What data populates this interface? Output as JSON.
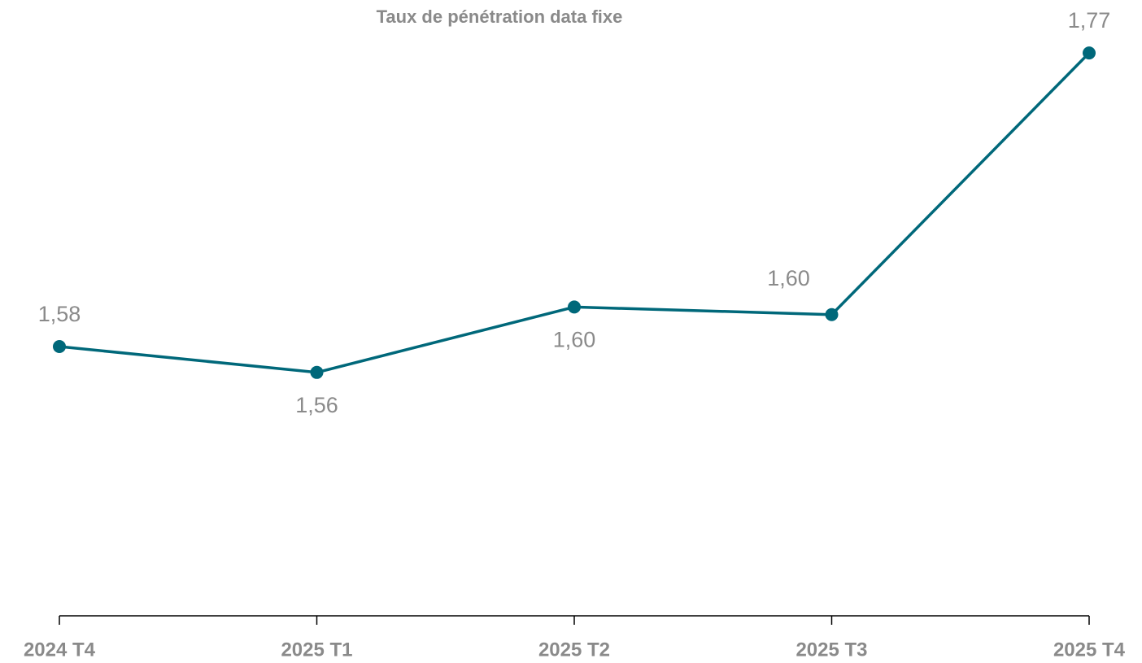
{
  "chart_data": {
    "type": "line",
    "title": "Taux de pénétration data fixe",
    "categories": [
      "2024 T4",
      "2025 T1",
      "2025 T2",
      "2025 T3",
      "2025 T4"
    ],
    "series": [
      {
        "color": "#00687a",
        "values": [
          1.577,
          1.56,
          1.603,
          1.598,
          1.77
        ],
        "value_labels": [
          "1,58",
          "1,56",
          "1,60",
          "1,60",
          "1,77"
        ]
      }
    ],
    "ylim": [
      1.4,
      1.8
    ]
  }
}
